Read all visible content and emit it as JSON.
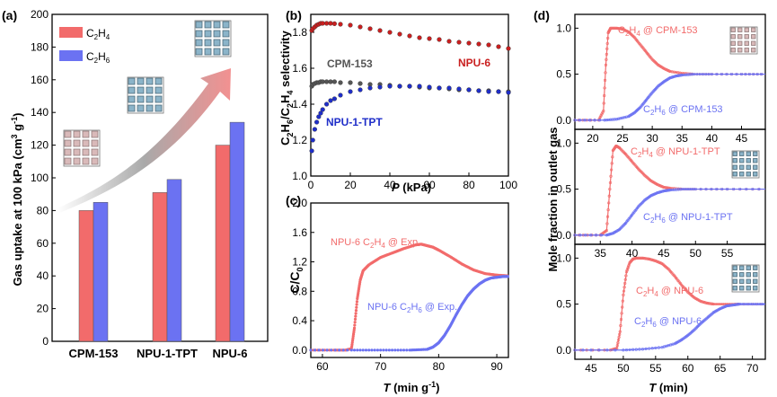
{
  "colors": {
    "red": "#f26b6b",
    "blue": "#6b72f2",
    "dark_red": "#c91f1f",
    "dark_blue": "#1f2ec9",
    "gray": "#555555"
  },
  "chart_data": [
    {
      "panel": "(a)",
      "type": "bar",
      "title": "",
      "ylabel": "Gas uptake at 100 kPa (cm³ g⁻¹)",
      "ylabel_parts": [
        "Gas uptake at 100 kPa (cm",
        "3",
        " g",
        "-1",
        ")"
      ],
      "ylim": [
        0,
        200
      ],
      "yticks": [
        "0",
        "20",
        "40",
        "60",
        "80",
        "100",
        "120",
        "140",
        "160",
        "180",
        "200"
      ],
      "categories": [
        "CPM-153",
        "NPU-1-TPT",
        "NPU-6"
      ],
      "legend": [
        {
          "main": "C",
          "sub1": "2",
          "mid": "H",
          "sub2": "4"
        },
        {
          "main": "C",
          "sub1": "2",
          "mid": "H",
          "sub2": "6"
        }
      ],
      "legend_position": "top-left",
      "series": [
        {
          "name": "C2H4",
          "values": [
            80,
            91,
            120
          ]
        },
        {
          "name": "C2H6",
          "values": [
            85,
            99,
            134
          ]
        }
      ]
    },
    {
      "panel": "(b)",
      "type": "scatter",
      "xlabel": "P (kPa)",
      "xlabel_italic": "P",
      "xlabel_rest": " (kPa)",
      "ylabel_parts": [
        "C",
        "2",
        "H",
        "6",
        "/C",
        "2",
        "H",
        "4",
        " selectivity"
      ],
      "xlim": [
        0,
        100
      ],
      "ylim": [
        1.0,
        1.9
      ],
      "xticks": [
        "0",
        "20",
        "40",
        "60",
        "80",
        "100"
      ],
      "yticks": [
        "1.0",
        "1.2",
        "1.4",
        "1.6",
        "1.8"
      ],
      "series": [
        {
          "name": "NPU-6",
          "color": "dark_red",
          "x": [
            0.5,
            1,
            2,
            3,
            4,
            5,
            6,
            8,
            10,
            12,
            15,
            20,
            25,
            30,
            35,
            40,
            45,
            50,
            55,
            60,
            65,
            70,
            75,
            80,
            85,
            90,
            95,
            100
          ],
          "y": [
            1.81,
            1.82,
            1.83,
            1.84,
            1.845,
            1.85,
            1.85,
            1.85,
            1.85,
            1.848,
            1.845,
            1.84,
            1.83,
            1.82,
            1.81,
            1.8,
            1.79,
            1.78,
            1.77,
            1.765,
            1.76,
            1.75,
            1.745,
            1.74,
            1.735,
            1.73,
            1.72,
            1.71
          ]
        },
        {
          "name": "CPM-153",
          "color": "gray",
          "x": [
            0.5,
            1,
            2,
            3,
            4,
            5,
            6,
            8,
            10,
            12,
            15,
            20,
            25,
            30,
            35,
            40,
            45,
            50,
            55,
            60,
            65,
            70,
            75,
            80,
            85,
            90,
            95,
            100
          ],
          "y": [
            1.5,
            1.51,
            1.515,
            1.52,
            1.52,
            1.525,
            1.525,
            1.525,
            1.525,
            1.525,
            1.52,
            1.52,
            1.515,
            1.51,
            1.51,
            1.505,
            1.5,
            1.5,
            1.495,
            1.49,
            1.49,
            1.485,
            1.48,
            1.48,
            1.475,
            1.475,
            1.47,
            1.47
          ]
        },
        {
          "name": "NPU-1-TPT",
          "color": "dark_blue",
          "x": [
            0.5,
            1,
            2,
            3,
            4,
            5,
            6,
            8,
            10,
            12,
            15,
            20,
            25,
            30,
            35,
            40,
            45,
            50,
            55,
            60,
            65,
            70,
            75,
            80,
            85,
            90,
            95,
            100
          ],
          "y": [
            1.14,
            1.2,
            1.26,
            1.3,
            1.33,
            1.35,
            1.37,
            1.4,
            1.42,
            1.43,
            1.45,
            1.47,
            1.48,
            1.49,
            1.495,
            1.5,
            1.5,
            1.5,
            1.5,
            1.495,
            1.49,
            1.49,
            1.485,
            1.48,
            1.475,
            1.47,
            1.47,
            1.465
          ]
        }
      ],
      "annotations": [
        "NPU-6",
        "CPM-153",
        "NPU-1-TPT"
      ]
    },
    {
      "panel": "(c)",
      "type": "line",
      "xlabel_italic": "T",
      "xlabel_rest": " (min g",
      "xlabel_sup": "-1",
      "xlabel_end": ")",
      "ylabel_main": "C/C",
      "ylabel_sub": "0",
      "xlim": [
        58,
        92
      ],
      "ylim": [
        -0.1,
        2.0
      ],
      "xticks": [
        "60",
        "70",
        "80",
        "90"
      ],
      "yticks": [
        "0.0",
        "0.4",
        "0.8",
        "1.2",
        "1.6",
        "2.0"
      ],
      "series": [
        {
          "name": "NPU-6 C2H4 @ Exp.",
          "color": "red",
          "x": [
            58,
            62,
            64,
            65,
            65.5,
            66,
            66.5,
            67,
            68,
            70,
            72,
            74,
            76,
            77,
            78,
            79,
            80,
            82,
            84,
            86,
            88,
            90,
            92
          ],
          "y": [
            0,
            0,
            0,
            0.02,
            0.3,
            0.7,
            0.95,
            1.08,
            1.16,
            1.26,
            1.32,
            1.38,
            1.43,
            1.44,
            1.42,
            1.4,
            1.36,
            1.27,
            1.17,
            1.09,
            1.04,
            1.02,
            1.01
          ]
        },
        {
          "name": "NPU-6 C2H6 @ Exp.",
          "color": "blue",
          "x": [
            58,
            65,
            70,
            75,
            78,
            79,
            80,
            81,
            82,
            83,
            84,
            85,
            86,
            87,
            88,
            89,
            90,
            91,
            92
          ],
          "y": [
            0,
            0,
            0,
            0,
            0.01,
            0.04,
            0.1,
            0.2,
            0.33,
            0.48,
            0.62,
            0.74,
            0.83,
            0.9,
            0.95,
            0.98,
            0.99,
            1.0,
            1.0
          ]
        }
      ],
      "labels": {
        "c2h4": {
          "pre": "NPU-6 C",
          "s1": "2",
          "mid": "H",
          "s2": "4",
          "post": " @ Exp."
        },
        "c2h6": {
          "pre": "NPU-6 C",
          "s1": "2",
          "mid": "H",
          "s2": "6",
          "post": " @ Exp."
        }
      }
    },
    {
      "panel": "(d)",
      "type": "line",
      "ylabel": "Mole fraction in outlet gas",
      "xlabel_italic": "T",
      "xlabel_rest": " (min)",
      "subplots": [
        {
          "xlim": [
            17,
            49
          ],
          "xticks": [
            "20",
            "25",
            "30",
            "35",
            "40",
            "45"
          ],
          "ylim": [
            -0.1,
            1.15
          ],
          "yticks": [
            "0.0",
            "0.5",
            "1.0"
          ],
          "series": [
            {
              "name": "C2H4 @ CPM-153",
              "color": "red",
              "x": [
                17,
                21,
                21.8,
                22.2,
                22.6,
                23,
                24,
                25,
                26,
                27,
                28,
                29,
                30,
                31,
                32,
                33,
                35,
                37,
                40,
                45,
                49
              ],
              "y": [
                0,
                0,
                0.1,
                0.6,
                0.95,
                1.0,
                1.0,
                0.99,
                0.96,
                0.9,
                0.82,
                0.74,
                0.66,
                0.6,
                0.56,
                0.53,
                0.51,
                0.5,
                0.5,
                0.5,
                0.5
              ]
            },
            {
              "name": "C2H6 @ CPM-153",
              "color": "blue",
              "x": [
                17,
                22,
                24,
                26,
                27,
                28,
                29,
                30,
                31,
                32,
                33,
                34,
                35,
                37,
                40,
                45,
                49
              ],
              "y": [
                0,
                0,
                0.01,
                0.04,
                0.08,
                0.14,
                0.22,
                0.3,
                0.37,
                0.42,
                0.46,
                0.48,
                0.49,
                0.5,
                0.5,
                0.5,
                0.5
              ]
            }
          ],
          "labels": {
            "c2h4": {
              "pre": "C",
              "s1": "2",
              "mid": "H",
              "s2": "4",
              "post": " @ CPM-153"
            },
            "c2h6": {
              "pre": "C",
              "s1": "2",
              "mid": "H",
              "s2": "6",
              "post": " @ CPM-153"
            }
          }
        },
        {
          "xlim": [
            31,
            61
          ],
          "xticks": [
            "35",
            "40",
            "45",
            "50",
            "55"
          ],
          "ylim": [
            -0.1,
            1.15
          ],
          "yticks": [
            "0.0",
            "0.5",
            "1.0"
          ],
          "series": [
            {
              "name": "C2H4 @ NPU-1-TPT",
              "color": "red",
              "x": [
                31,
                35,
                36,
                36.5,
                37,
                37.5,
                38,
                39,
                40,
                41,
                42,
                43,
                44,
                45,
                46,
                48,
                50,
                55,
                61
              ],
              "y": [
                0,
                0,
                0.05,
                0.5,
                0.92,
                0.97,
                0.95,
                0.88,
                0.8,
                0.72,
                0.65,
                0.59,
                0.55,
                0.52,
                0.51,
                0.5,
                0.5,
                0.5,
                0.5
              ]
            },
            {
              "name": "C2H6 @ NPU-1-TPT",
              "color": "blue",
              "x": [
                31,
                36,
                37,
                38,
                39,
                40,
                41,
                42,
                43,
                44,
                45,
                46,
                48,
                50,
                55,
                61
              ],
              "y": [
                0,
                0,
                0.02,
                0.06,
                0.13,
                0.22,
                0.31,
                0.38,
                0.43,
                0.46,
                0.48,
                0.49,
                0.5,
                0.5,
                0.5,
                0.5
              ]
            }
          ],
          "labels": {
            "c2h4": {
              "pre": "C",
              "s1": "2",
              "mid": "H",
              "s2": "4",
              "post": " @ NPU-1-TPT"
            },
            "c2h6": {
              "pre": "C",
              "s1": "2",
              "mid": "H",
              "s2": "6",
              "post": " @ NPU-1-TPT"
            }
          }
        },
        {
          "xlim": [
            42.5,
            72
          ],
          "xticks": [
            "45",
            "50",
            "55",
            "60",
            "65",
            "70"
          ],
          "ylim": [
            -0.1,
            1.15
          ],
          "yticks": [
            "0.0",
            "0.5",
            "1.0"
          ],
          "series": [
            {
              "name": "C2H4 @ NPU-6",
              "color": "red",
              "x": [
                42.5,
                48,
                49,
                49.5,
                50,
                50.5,
                51,
                51.5,
                52,
                53,
                54,
                55,
                56,
                57,
                58,
                59,
                60,
                61,
                62,
                63,
                64,
                66,
                68,
                72
              ],
              "y": [
                0,
                0,
                0.02,
                0.2,
                0.6,
                0.85,
                0.95,
                0.99,
                1.0,
                1.0,
                0.99,
                0.97,
                0.94,
                0.88,
                0.8,
                0.71,
                0.63,
                0.57,
                0.53,
                0.51,
                0.5,
                0.5,
                0.5,
                0.5
              ]
            },
            {
              "name": "C2H6 @ NPU-6",
              "color": "blue",
              "x": [
                42.5,
                50,
                53,
                56,
                58,
                59,
                60,
                61,
                62,
                63,
                64,
                65,
                66,
                67,
                68,
                70,
                72
              ],
              "y": [
                0,
                0,
                0.01,
                0.03,
                0.07,
                0.11,
                0.16,
                0.22,
                0.29,
                0.35,
                0.41,
                0.45,
                0.48,
                0.49,
                0.5,
                0.5,
                0.5
              ]
            }
          ],
          "labels": {
            "c2h4": {
              "pre": "C",
              "s1": "2",
              "mid": "H",
              "s2": "4",
              "post": " @ NPU-6"
            },
            "c2h6": {
              "pre": "C",
              "s1": "2",
              "mid": "H",
              "s2": "6",
              "post": " @ NPU-6"
            }
          }
        }
      ]
    }
  ]
}
